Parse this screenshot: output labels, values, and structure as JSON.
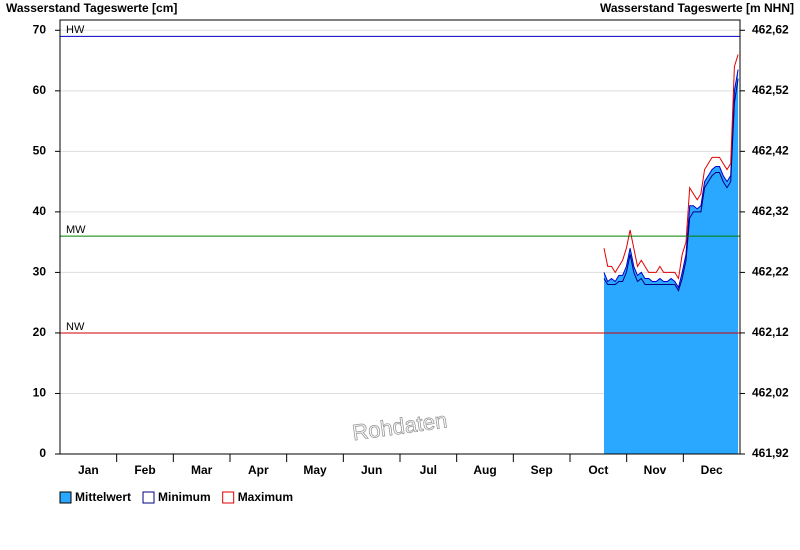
{
  "chart_data": {
    "type": "area",
    "y_label": "Wasserstand Tageswerte [cm]",
    "y2_label": "Wasserstand Tageswerte [m NHN]",
    "watermark": "Rohdaten",
    "categories": [
      "Jan",
      "Feb",
      "Mar",
      "Apr",
      "May",
      "Jun",
      "Jul",
      "Aug",
      "Sep",
      "Oct",
      "Nov",
      "Dec"
    ],
    "xlim": [
      0,
      365
    ],
    "x": [
      292,
      294,
      296,
      298,
      300,
      302,
      304,
      306,
      308,
      310,
      312,
      314,
      316,
      318,
      320,
      322,
      324,
      326,
      328,
      330,
      332,
      334,
      336,
      338,
      340,
      342,
      344,
      346,
      348,
      350,
      352,
      354,
      356,
      358,
      360,
      362,
      364
    ],
    "series": [
      {
        "name": "Mittelwert",
        "color": "#2aa7ff",
        "line_color": "#0000cc",
        "fill": true,
        "values": [
          30,
          28.5,
          29,
          28.5,
          29.5,
          29.5,
          31,
          34,
          31,
          29.5,
          30,
          29,
          29,
          28.5,
          28.5,
          29,
          28.5,
          28.5,
          29,
          28.5,
          27.5,
          30,
          33,
          41,
          41,
          40.5,
          41,
          45,
          46,
          47,
          47.5,
          47.5,
          46,
          45,
          46,
          60,
          63.5
        ]
      },
      {
        "name": "Minimum",
        "color": "#000080",
        "fill": false,
        "values": [
          29,
          28,
          28,
          28,
          28.5,
          28.5,
          30,
          33,
          30,
          28.5,
          29,
          28,
          28,
          28,
          28,
          28,
          28,
          28,
          28,
          28,
          27,
          29,
          32,
          39,
          40,
          40,
          40,
          44,
          45,
          46,
          46.5,
          46.5,
          45,
          44,
          45,
          58,
          62
        ]
      },
      {
        "name": "Maximum",
        "color": "#e00000",
        "fill": false,
        "values": [
          34,
          31,
          31,
          30,
          31,
          32,
          34,
          37,
          34,
          31,
          32,
          31,
          30,
          30,
          30,
          31,
          30,
          30,
          30,
          30,
          29,
          33,
          35,
          44,
          43,
          42,
          43,
          47,
          48,
          49,
          49,
          49,
          48,
          47,
          48,
          64,
          66
        ]
      }
    ],
    "reference_lines": [
      {
        "label": "HW",
        "value": 69,
        "color": "#0000cc"
      },
      {
        "label": "MW",
        "value": 36,
        "color": "#008000"
      },
      {
        "label": "NW",
        "value": 20,
        "color": "#cc0000"
      }
    ],
    "ylim": [
      0,
      71.7
    ],
    "yticks": [
      0,
      10,
      20,
      30,
      40,
      50,
      60,
      70
    ],
    "y2lim": [
      461.92,
      462.637
    ],
    "y2ticks": [
      {
        "value": 461.92,
        "label": "461,92"
      },
      {
        "value": 462.02,
        "label": "462,02"
      },
      {
        "value": 462.12,
        "label": "462,12"
      },
      {
        "value": 462.22,
        "label": "462,22"
      },
      {
        "value": 462.32,
        "label": "462,32"
      },
      {
        "value": 462.42,
        "label": "462,42"
      },
      {
        "value": 462.52,
        "label": "462,52"
      },
      {
        "value": 462.62,
        "label": "462,62"
      }
    ],
    "grid": true,
    "legend": "bottom-left"
  }
}
